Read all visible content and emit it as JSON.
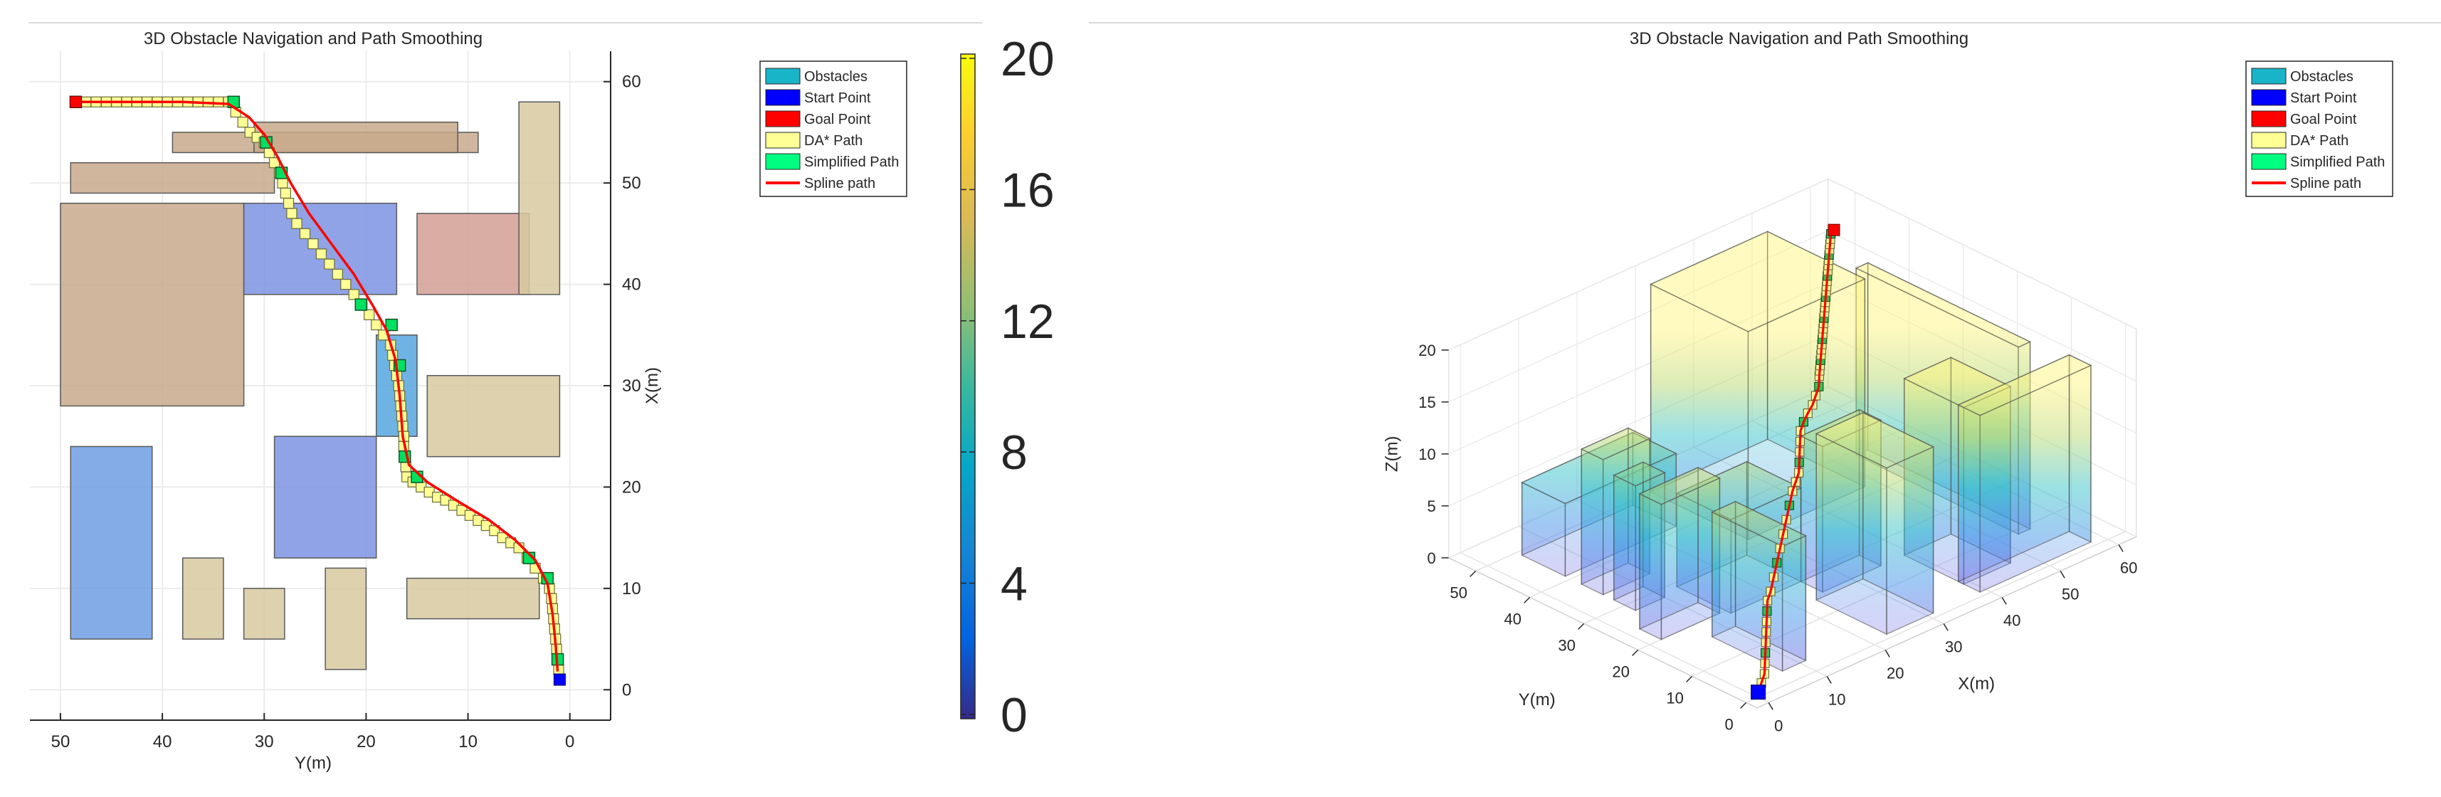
{
  "chart_data": [
    {
      "type": "scatter",
      "view": "top",
      "title": "3D Obstacle Navigation and Path Smoothing",
      "xlabel": "Y(m)",
      "ylabel": "X(m)",
      "x_axis_values": "Y",
      "y_axis_values": "X",
      "xlim": [
        53,
        -4
      ],
      "ylim": [
        -3,
        63
      ],
      "x_ticks": [
        50,
        40,
        30,
        20,
        10,
        0
      ],
      "y_ticks": [
        0,
        10,
        20,
        30,
        40,
        50,
        60
      ],
      "y_axis_side": "right",
      "grid": true,
      "legend": {
        "position": "top-right",
        "entries": [
          {
            "label": "Obstacles",
            "color": "#19b4c8",
            "kind": "patch"
          },
          {
            "label": "Start Point",
            "color": "#0000ff",
            "kind": "patch"
          },
          {
            "label": "Goal Point",
            "color": "#ff0000",
            "kind": "patch"
          },
          {
            "label": "DA* Path",
            "color": "#ffff96",
            "kind": "patch"
          },
          {
            "label": "Simplified Path",
            "color": "#00ff80",
            "kind": "patch"
          },
          {
            "label": "Spline path",
            "color": "#ff0000",
            "kind": "line"
          }
        ]
      },
      "obstacles": [
        {
          "y": [
            39,
            9
          ],
          "x": [
            53,
            55
          ],
          "color": "#c8a98b"
        },
        {
          "y": [
            31,
            11
          ],
          "x": [
            53,
            56
          ],
          "color": "#c8a98b"
        },
        {
          "y": [
            49,
            29
          ],
          "x": [
            49,
            52
          ],
          "color": "#c8a98b"
        },
        {
          "y": [
            50,
            32
          ],
          "x": [
            28,
            48
          ],
          "color": "#c8a98b"
        },
        {
          "y": [
            32,
            17
          ],
          "x": [
            39,
            48
          ],
          "color": "#7c93e3"
        },
        {
          "y": [
            15,
            4
          ],
          "x": [
            39,
            47
          ],
          "color": "#d39f94"
        },
        {
          "y": [
            5,
            1
          ],
          "x": [
            39,
            58
          ],
          "color": "#d7c9a0"
        },
        {
          "y": [
            19,
            15
          ],
          "x": [
            25,
            35
          ],
          "color": "#55a6de"
        },
        {
          "y": [
            14,
            1
          ],
          "x": [
            23,
            31
          ],
          "color": "#d7c9a0"
        },
        {
          "y": [
            49,
            41
          ],
          "x": [
            5,
            24
          ],
          "color": "#6f9de3"
        },
        {
          "y": [
            29,
            19
          ],
          "x": [
            13,
            25
          ],
          "color": "#7c93e3"
        },
        {
          "y": [
            38,
            34
          ],
          "x": [
            5,
            13
          ],
          "color": "#d7c9a0"
        },
        {
          "y": [
            32,
            28
          ],
          "x": [
            5,
            10
          ],
          "color": "#d7c9a0"
        },
        {
          "y": [
            24,
            20
          ],
          "x": [
            2,
            12
          ],
          "color": "#d7c9a0"
        },
        {
          "y": [
            16,
            3
          ],
          "x": [
            7,
            11
          ],
          "color": "#d7c9a0"
        }
      ],
      "start": {
        "y": 1,
        "x": 1
      },
      "goal": {
        "y": 48.5,
        "x": 58
      },
      "dastar_path": [
        [
          48.5,
          58
        ],
        [
          47.5,
          58
        ],
        [
          46.5,
          58
        ],
        [
          45.5,
          58
        ],
        [
          44.5,
          58
        ],
        [
          43.5,
          58
        ],
        [
          42.5,
          58
        ],
        [
          41.5,
          58
        ],
        [
          40.5,
          58
        ],
        [
          39.5,
          58
        ],
        [
          38.5,
          58
        ],
        [
          37.5,
          58
        ],
        [
          36.5,
          58
        ],
        [
          35.5,
          58
        ],
        [
          34.5,
          58
        ],
        [
          33.5,
          58
        ],
        [
          32.8,
          57
        ],
        [
          32.1,
          56
        ],
        [
          31.4,
          55
        ],
        [
          30.7,
          54.5
        ],
        [
          30,
          54
        ],
        [
          29.5,
          53
        ],
        [
          29,
          52
        ],
        [
          28.5,
          51
        ],
        [
          28.2,
          50
        ],
        [
          27.9,
          49
        ],
        [
          27.6,
          48
        ],
        [
          27.3,
          47
        ],
        [
          26.8,
          46
        ],
        [
          26,
          45
        ],
        [
          25.2,
          44
        ],
        [
          24.4,
          43
        ],
        [
          23.6,
          42
        ],
        [
          22.8,
          41
        ],
        [
          22,
          40
        ],
        [
          21.2,
          39
        ],
        [
          20.4,
          38
        ],
        [
          19.7,
          37
        ],
        [
          19,
          36
        ],
        [
          18.3,
          35
        ],
        [
          17.6,
          34
        ],
        [
          17.4,
          33
        ],
        [
          17.2,
          32
        ],
        [
          17,
          31
        ],
        [
          16.8,
          30
        ],
        [
          16.7,
          29
        ],
        [
          16.6,
          28
        ],
        [
          16.5,
          27
        ],
        [
          16.4,
          26
        ],
        [
          16.3,
          25
        ],
        [
          16.3,
          24
        ],
        [
          16.2,
          23
        ],
        [
          16.1,
          22
        ],
        [
          16,
          21
        ],
        [
          15.4,
          20.5
        ],
        [
          14.6,
          20
        ],
        [
          13.8,
          19.5
        ],
        [
          13,
          19
        ],
        [
          12.2,
          18.7
        ],
        [
          11.4,
          18.2
        ],
        [
          10.6,
          17.7
        ],
        [
          9.8,
          17.2
        ],
        [
          9,
          16.7
        ],
        [
          8.2,
          16.2
        ],
        [
          7.4,
          15.7
        ],
        [
          6.6,
          15
        ],
        [
          5.8,
          14.5
        ],
        [
          5,
          14
        ],
        [
          4.2,
          13
        ],
        [
          3.4,
          12
        ],
        [
          2.6,
          11
        ],
        [
          2,
          10
        ],
        [
          1.8,
          9
        ],
        [
          1.7,
          8
        ],
        [
          1.6,
          7
        ],
        [
          1.5,
          6
        ],
        [
          1.4,
          5
        ],
        [
          1.3,
          4
        ],
        [
          1.2,
          3
        ],
        [
          1.1,
          2
        ]
      ],
      "simplified_path": [
        [
          48.5,
          58
        ],
        [
          33,
          58
        ],
        [
          29.8,
          54
        ],
        [
          28.3,
          51
        ],
        [
          20.5,
          38
        ],
        [
          17.5,
          36
        ],
        [
          16.7,
          32
        ],
        [
          16.2,
          23
        ],
        [
          15,
          21
        ],
        [
          4,
          13
        ],
        [
          2.2,
          11
        ],
        [
          1.2,
          3
        ]
      ],
      "spline_path": [
        [
          48.5,
          58
        ],
        [
          44,
          58
        ],
        [
          38,
          58
        ],
        [
          33.5,
          57.8
        ],
        [
          31.5,
          56.5
        ],
        [
          30,
          54.8
        ],
        [
          28.7,
          52.6
        ],
        [
          27.4,
          50
        ],
        [
          25.6,
          47
        ],
        [
          23.4,
          44
        ],
        [
          21.2,
          41
        ],
        [
          19.4,
          38
        ],
        [
          18,
          35.5
        ],
        [
          17.1,
          32.5
        ],
        [
          16.7,
          29
        ],
        [
          16.4,
          25
        ],
        [
          15.8,
          22.2
        ],
        [
          14,
          20.5
        ],
        [
          11,
          18.6
        ],
        [
          8,
          16.8
        ],
        [
          5.4,
          14.8
        ],
        [
          3.4,
          12.8
        ],
        [
          2.2,
          10.5
        ],
        [
          1.7,
          7.5
        ],
        [
          1.4,
          4.5
        ],
        [
          1.2,
          1.8
        ]
      ]
    },
    {
      "type": "scatter",
      "view": "3d",
      "title": "3D Obstacle Navigation and Path Smoothing",
      "xlabel": "X(m)",
      "ylabel": "Y(m)",
      "zlabel": "Z(m)",
      "x_ticks": [
        0,
        10,
        20,
        30,
        40,
        50,
        60
      ],
      "y_ticks": [
        0,
        10,
        20,
        30,
        40,
        50
      ],
      "z_ticks": [
        0,
        5,
        10,
        15,
        20
      ],
      "xlim": [
        -2,
        63
      ],
      "ylim": [
        -2,
        55
      ],
      "zlim": [
        0,
        20
      ],
      "grid": true,
      "legend": {
        "position": "top-right",
        "entries": [
          {
            "label": "Obstacles",
            "color": "#19b4c8",
            "kind": "patch"
          },
          {
            "label": "Start Point",
            "color": "#0000ff",
            "kind": "patch"
          },
          {
            "label": "Goal Point",
            "color": "#ff0000",
            "kind": "patch"
          },
          {
            "label": "DA* Path",
            "color": "#ffff96",
            "kind": "patch"
          },
          {
            "label": "Simplified Path",
            "color": "#00ff80",
            "kind": "patch"
          },
          {
            "label": "Spline path",
            "color": "#ff0000",
            "kind": "line"
          }
        ]
      },
      "obstacles": [
        {
          "x": [
            28,
            48
          ],
          "y": [
            32,
            50
          ],
          "z": [
            0,
            20
          ]
        },
        {
          "x": [
            53,
            55
          ],
          "y": [
            9,
            39
          ],
          "z": [
            0,
            18
          ]
        },
        {
          "x": [
            39,
            47
          ],
          "y": [
            4,
            15
          ],
          "z": [
            0,
            17
          ]
        },
        {
          "x": [
            39,
            58
          ],
          "y": [
            1,
            5
          ],
          "z": [
            0,
            17
          ]
        },
        {
          "x": [
            25,
            35
          ],
          "y": [
            15,
            19
          ],
          "z": [
            0,
            14
          ]
        },
        {
          "x": [
            23,
            31
          ],
          "y": [
            1,
            14
          ],
          "z": [
            0,
            16
          ]
        },
        {
          "x": [
            5,
            24
          ],
          "y": [
            41,
            49
          ],
          "z": [
            0,
            7
          ]
        },
        {
          "x": [
            13,
            25
          ],
          "y": [
            19,
            29
          ],
          "z": [
            0,
            9
          ]
        },
        {
          "x": [
            5,
            13
          ],
          "y": [
            34,
            38
          ],
          "z": [
            0,
            13
          ]
        },
        {
          "x": [
            5,
            10
          ],
          "y": [
            28,
            32
          ],
          "z": [
            0,
            12
          ]
        },
        {
          "x": [
            2,
            12
          ],
          "y": [
            20,
            24
          ],
          "z": [
            0,
            13
          ]
        },
        {
          "x": [
            7,
            11
          ],
          "y": [
            3,
            16
          ],
          "z": [
            0,
            12
          ]
        }
      ],
      "start": {
        "x": 1,
        "y": 1,
        "z": 0
      },
      "goal": {
        "x": 58,
        "y": 48.5,
        "z": 18
      },
      "path_3d": [
        [
          1,
          1,
          0
        ],
        [
          2,
          1.5,
          0.5
        ],
        [
          3,
          2,
          1
        ],
        [
          4,
          3,
          1.5
        ],
        [
          5,
          4,
          2
        ],
        [
          6,
          5,
          2.5
        ],
        [
          7,
          6,
          3
        ],
        [
          8,
          7,
          3.5
        ],
        [
          9,
          8,
          4
        ],
        [
          10,
          9,
          4.5
        ],
        [
          11,
          9.5,
          5
        ],
        [
          12,
          10,
          6
        ],
        [
          13,
          10.5,
          7
        ],
        [
          14,
          11,
          8
        ],
        [
          15,
          11.5,
          9
        ],
        [
          16,
          12,
          10
        ],
        [
          17,
          12.5,
          11
        ],
        [
          18,
          13,
          12
        ],
        [
          19,
          13.5,
          12.5
        ],
        [
          20,
          14,
          13
        ],
        [
          21,
          15,
          13.5
        ],
        [
          22,
          16,
          14
        ],
        [
          23,
          17,
          14.5
        ],
        [
          24,
          18,
          15
        ],
        [
          25,
          18.5,
          15.5
        ],
        [
          26,
          18.8,
          16
        ],
        [
          27,
          19,
          16.5
        ],
        [
          28,
          19.5,
          17
        ],
        [
          29,
          20,
          17.5
        ],
        [
          30,
          21,
          18
        ],
        [
          31,
          22,
          18
        ],
        [
          32,
          23,
          18
        ],
        [
          33,
          24,
          18
        ],
        [
          34,
          25,
          18
        ],
        [
          35,
          26,
          18
        ],
        [
          36,
          27,
          18
        ],
        [
          37,
          28,
          18
        ],
        [
          38,
          29,
          18
        ],
        [
          39,
          30,
          18
        ],
        [
          40,
          31,
          18
        ],
        [
          41,
          32,
          18
        ],
        [
          42,
          33,
          18
        ],
        [
          43,
          34,
          18
        ],
        [
          44,
          35,
          18
        ],
        [
          45,
          36,
          18
        ],
        [
          46,
          37,
          18
        ],
        [
          47,
          38,
          18
        ],
        [
          48,
          39,
          18
        ],
        [
          49,
          40,
          18
        ],
        [
          50,
          41,
          18
        ],
        [
          51,
          42,
          18
        ],
        [
          52,
          43,
          18
        ],
        [
          53,
          44,
          18
        ],
        [
          54,
          45,
          18
        ],
        [
          55,
          46,
          18
        ],
        [
          56,
          47,
          18
        ],
        [
          57,
          48,
          18
        ],
        [
          58,
          48.5,
          18
        ]
      ]
    }
  ],
  "colorbar": {
    "ticks": [
      "0",
      "4",
      "8",
      "12",
      "16",
      "20"
    ],
    "min": 0,
    "max": 20,
    "colormap": "parula"
  }
}
